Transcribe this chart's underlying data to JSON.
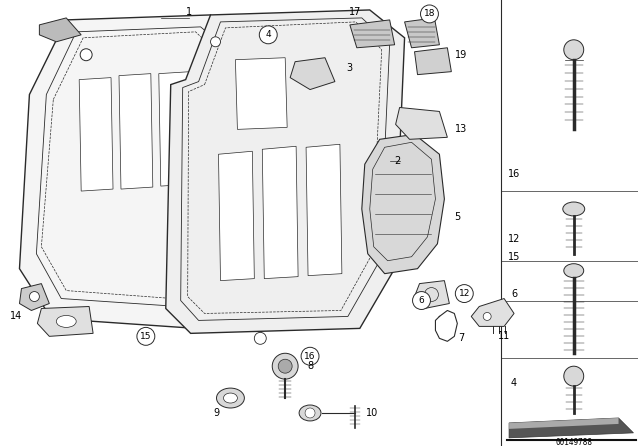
{
  "background_color": "#ffffff",
  "diagram_id": "00149788",
  "line_color": "#2a2a2a",
  "gray_fill": "#c8c8c8",
  "light_gray": "#e8e8e8",
  "dark_gray": "#888888"
}
